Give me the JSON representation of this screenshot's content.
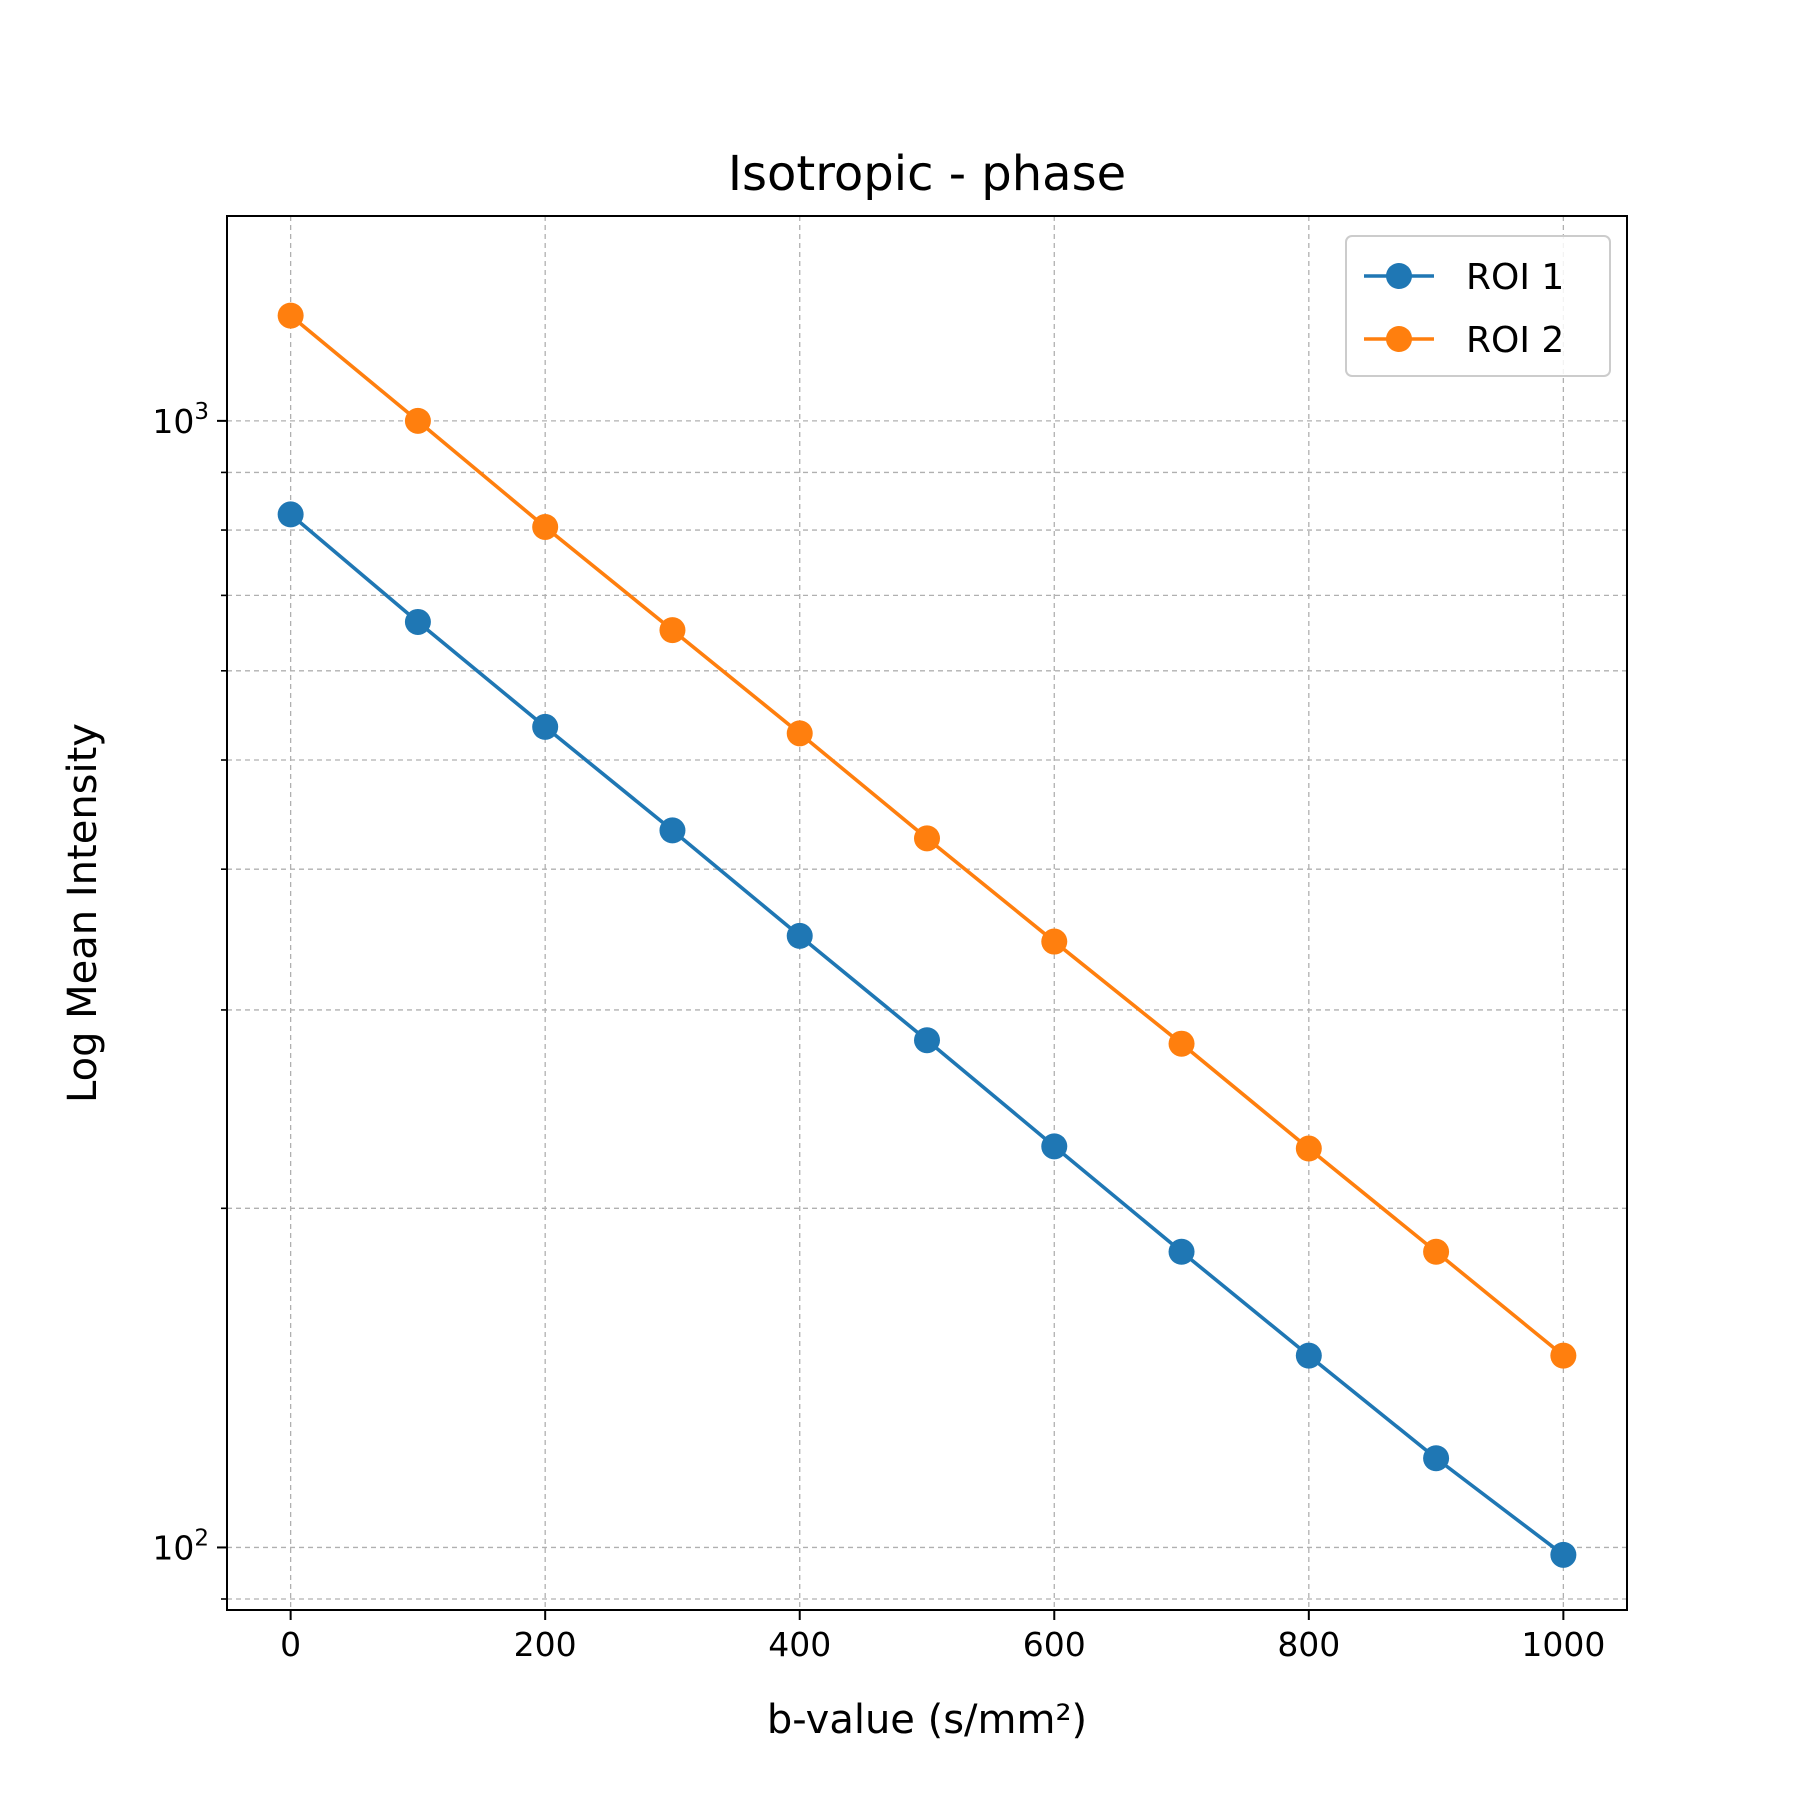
{
  "chart_data": {
    "type": "line",
    "title": "Isotropic - phase",
    "xlabel": "b-value (s/mm²)",
    "ylabel": "Log Mean Intensity",
    "yscale": "log",
    "xlim": [
      -50,
      1050
    ],
    "ylim": [
      88,
      1520
    ],
    "xticks": [
      0,
      200,
      400,
      600,
      800,
      1000
    ],
    "xtick_labels": [
      "0",
      "200",
      "400",
      "600",
      "800",
      "1000"
    ],
    "yticks_major": [
      {
        "value": 100,
        "base": "10",
        "exp": "2"
      },
      {
        "value": 1000,
        "base": "10",
        "exp": "3"
      }
    ],
    "yticks_minor": [
      90,
      200,
      300,
      400,
      500,
      600,
      700,
      800,
      900
    ],
    "grid": true,
    "legend": {
      "position": "top-right"
    },
    "x": [
      0,
      100,
      200,
      300,
      400,
      500,
      600,
      700,
      800,
      900,
      1000
    ],
    "series": [
      {
        "name": "ROI 1",
        "color": "#1f77b4",
        "values": [
          826,
          663,
          535,
          433,
          349,
          282,
          227,
          183,
          148,
          120,
          98.5
        ]
      },
      {
        "name": "ROI 2",
        "color": "#ff7f0e",
        "values": [
          1240,
          1000,
          805,
          652,
          528,
          426,
          345,
          280,
          226,
          183,
          148
        ]
      }
    ]
  }
}
